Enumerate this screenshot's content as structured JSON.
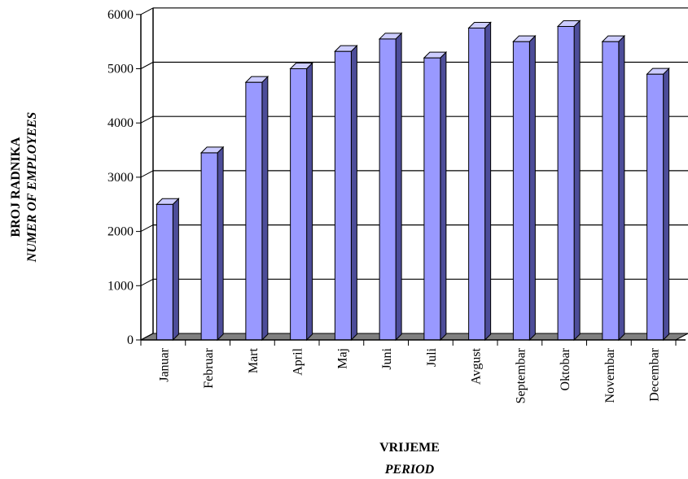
{
  "chart_data": {
    "type": "bar",
    "categories": [
      "Januar",
      "Februar",
      "Mart",
      "April",
      "Maj",
      "Juni",
      "Juli",
      "Avgust",
      "Septembar",
      "Oktobar",
      "Novembar",
      "Decembar"
    ],
    "series": [
      {
        "values": [
          2500,
          3450,
          4750,
          5000,
          5320,
          5550,
          5200,
          5750,
          5500,
          5780,
          5500,
          4900
        ]
      }
    ],
    "ylim": [
      0,
      6000
    ],
    "yticks": [
      0,
      1000,
      2000,
      3000,
      4000,
      5000,
      6000
    ],
    "xlabel": "VRIJEME",
    "xlabel_sub": "PERIOD",
    "ylabel": "BROJ RADNIKA",
    "ylabel_sub": "NUMER OF EMPLOYEES",
    "grid": true,
    "style": "3d-column",
    "colors": {
      "bar_front": "#9999ff",
      "bar_side": "#4d4d99",
      "bar_top": "#ccccff",
      "floor": "#808080",
      "grid": "#000000"
    }
  }
}
